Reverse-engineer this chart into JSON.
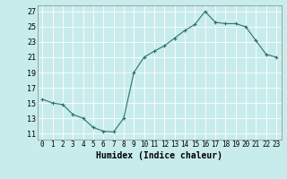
{
  "x": [
    0,
    1,
    2,
    3,
    4,
    5,
    6,
    7,
    8,
    9,
    10,
    11,
    12,
    13,
    14,
    15,
    16,
    17,
    18,
    19,
    20,
    21,
    22,
    23
  ],
  "y": [
    15.5,
    15.0,
    14.8,
    13.5,
    13.0,
    11.8,
    11.3,
    11.2,
    13.0,
    19.0,
    21.0,
    21.8,
    22.5,
    23.5,
    24.5,
    25.3,
    27.0,
    25.6,
    25.4,
    25.4,
    25.0,
    23.2,
    21.4,
    21.0
  ],
  "line_color": "#2d7070",
  "marker": "+",
  "marker_size": 3,
  "marker_linewidth": 0.8,
  "line_width": 0.8,
  "bg_color": "#c8ecec",
  "grid_color": "#ffffff",
  "xlabel": "Humidex (Indice chaleur)",
  "xlabel_fontsize": 7,
  "tick_fontsize": 6,
  "ytick_labels": [
    11,
    13,
    15,
    17,
    19,
    21,
    23,
    25,
    27
  ],
  "xlim": [
    -0.5,
    23.5
  ],
  "ylim": [
    10.2,
    27.8
  ],
  "xtick_positions": [
    0,
    1,
    2,
    3,
    4,
    5,
    6,
    7,
    8,
    9,
    10,
    11,
    12,
    13,
    14,
    15,
    16,
    17,
    18,
    19,
    20,
    21,
    22,
    23
  ],
  "xtick_labels": [
    "0",
    "1",
    "2",
    "3",
    "4",
    "5",
    "6",
    "7",
    "8",
    "9",
    "10",
    "11",
    "12",
    "13",
    "14",
    "15",
    "16",
    "17",
    "18",
    "19",
    "20",
    "21",
    "22",
    "23"
  ]
}
